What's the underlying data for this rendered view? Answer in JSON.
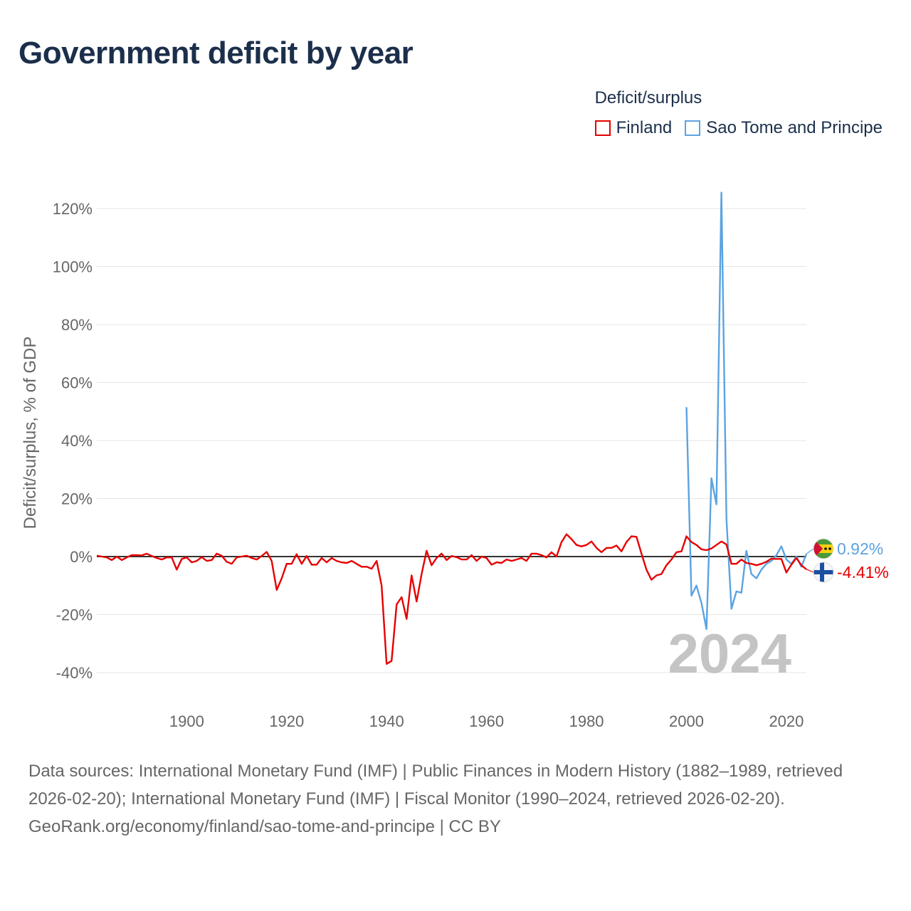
{
  "chart_data": {
    "type": "line",
    "title": "Government deficit by year",
    "ylabel": "Deficit/surplus, % of GDP",
    "xlabel": "",
    "xlim": [
      1882,
      2024
    ],
    "ylim": [
      -40,
      120
    ],
    "xticks": [
      "1900",
      "1920",
      "1940",
      "1960",
      "1980",
      "2000",
      "2020"
    ],
    "yticks": [
      "120%",
      "100%",
      "80%",
      "60%",
      "40%",
      "20%",
      "0%",
      "-20%",
      "-40%"
    ],
    "year_label": "2024",
    "legend_title": "Deficit/surplus",
    "series": [
      {
        "name": "Finland",
        "color": "#e60000",
        "end_label": "-4.41%",
        "flag": "finland-flag",
        "x": [
          1882,
          1883,
          1884,
          1885,
          1886,
          1887,
          1888,
          1889,
          1890,
          1891,
          1892,
          1893,
          1894,
          1895,
          1896,
          1897,
          1898,
          1899,
          1900,
          1901,
          1902,
          1903,
          1904,
          1905,
          1906,
          1907,
          1908,
          1909,
          1910,
          1911,
          1912,
          1913,
          1914,
          1915,
          1916,
          1917,
          1918,
          1919,
          1920,
          1921,
          1922,
          1923,
          1924,
          1925,
          1926,
          1927,
          1928,
          1929,
          1930,
          1931,
          1932,
          1933,
          1934,
          1935,
          1936,
          1937,
          1938,
          1939,
          1940,
          1941,
          1942,
          1943,
          1944,
          1945,
          1946,
          1947,
          1948,
          1949,
          1950,
          1951,
          1952,
          1953,
          1954,
          1955,
          1956,
          1957,
          1958,
          1959,
          1960,
          1961,
          1962,
          1963,
          1964,
          1965,
          1966,
          1967,
          1968,
          1969,
          1970,
          1971,
          1972,
          1973,
          1974,
          1975,
          1976,
          1977,
          1978,
          1979,
          1980,
          1981,
          1982,
          1983,
          1984,
          1985,
          1986,
          1987,
          1988,
          1989,
          1990,
          1991,
          1992,
          1993,
          1994,
          1995,
          1996,
          1997,
          1998,
          1999,
          2000,
          2001,
          2002,
          2003,
          2004,
          2005,
          2006,
          2007,
          2008,
          2009,
          2010,
          2011,
          2012,
          2013,
          2014,
          2015,
          2016,
          2017,
          2018,
          2019,
          2020,
          2021,
          2022,
          2023,
          2024
        ],
        "values": [
          0.3,
          0.0,
          -0.3,
          -1.2,
          0.0,
          -1.2,
          -0.3,
          0.5,
          0.5,
          0.4,
          1.0,
          0.2,
          -0.5,
          -1.0,
          -0.3,
          -0.3,
          -4.5,
          -0.8,
          -0.3,
          -2.0,
          -1.5,
          -0.2,
          -1.5,
          -1.2,
          1.0,
          0.3,
          -1.8,
          -2.5,
          -0.3,
          0.0,
          0.3,
          -0.5,
          -1.0,
          0.2,
          1.6,
          -1.5,
          -11.5,
          -7.5,
          -2.5,
          -2.5,
          0.8,
          -2.5,
          0.2,
          -2.8,
          -2.8,
          -0.5,
          -2.0,
          -0.5,
          -1.5,
          -2.0,
          -2.2,
          -1.5,
          -2.5,
          -3.5,
          -3.5,
          -4.2,
          -1.5,
          -10.0,
          -37.0,
          -36.0,
          -16.5,
          -14.0,
          -21.5,
          -6.5,
          -15.5,
          -6.0,
          2.0,
          -3.0,
          -0.5,
          1.0,
          -1.2,
          0.2,
          -0.2,
          -1.0,
          -1.0,
          0.5,
          -1.5,
          0.0,
          -0.5,
          -2.8,
          -2.0,
          -2.2,
          -1.0,
          -1.5,
          -1.0,
          -0.5,
          -1.5,
          1.0,
          1.0,
          0.5,
          -0.3,
          1.5,
          0.0,
          5.0,
          7.7,
          6.0,
          4.0,
          3.5,
          4.0,
          5.2,
          3.0,
          1.5,
          3.0,
          3.0,
          3.8,
          1.8,
          5.0,
          7.0,
          6.8,
          1.0,
          -4.5,
          -8.0,
          -6.5,
          -6.0,
          -3.0,
          -1.0,
          1.5,
          1.8,
          7.0,
          5.0,
          4.0,
          2.5,
          2.2,
          2.8,
          4.0,
          5.2,
          4.2,
          -2.5,
          -2.5,
          -1.0,
          -2.2,
          -2.5,
          -3.0,
          -2.5,
          -1.8,
          -0.7,
          -0.8,
          -0.8,
          -5.5,
          -2.8,
          -0.5,
          -3.0,
          -4.41
        ]
      },
      {
        "name": "Sao Tome and Principe",
        "color": "#5ba3e0",
        "end_label": "0.92%",
        "flag": "sao-tome-and-principe-flag",
        "x": [
          2000,
          2001,
          2002,
          2003,
          2004,
          2005,
          2006,
          2007,
          2008,
          2009,
          2010,
          2011,
          2012,
          2013,
          2014,
          2015,
          2016,
          2017,
          2018,
          2019,
          2020,
          2021,
          2022,
          2023,
          2024
        ],
        "values": [
          51.5,
          -13.5,
          -10.0,
          -16.0,
          -25.0,
          27.0,
          18.0,
          125.5,
          13.0,
          -18.0,
          -12.0,
          -12.5,
          2.0,
          -6.0,
          -7.5,
          -4.5,
          -2.5,
          -1.5,
          0.5,
          3.5,
          -1.0,
          -2.5,
          0.0,
          -3.5,
          0.92
        ]
      }
    ]
  },
  "footer": {
    "sources": "Data sources: International Monetary Fund (IMF) | Public Finances in Modern History (1882–1989, retrieved 2026-02-20); International Monetary Fund (IMF) | Fiscal Monitor (1990–2024, retrieved 2026-02-20).",
    "attribution": "GeoRank.org/economy/finland/sao-tome-and-principe | CC BY"
  }
}
